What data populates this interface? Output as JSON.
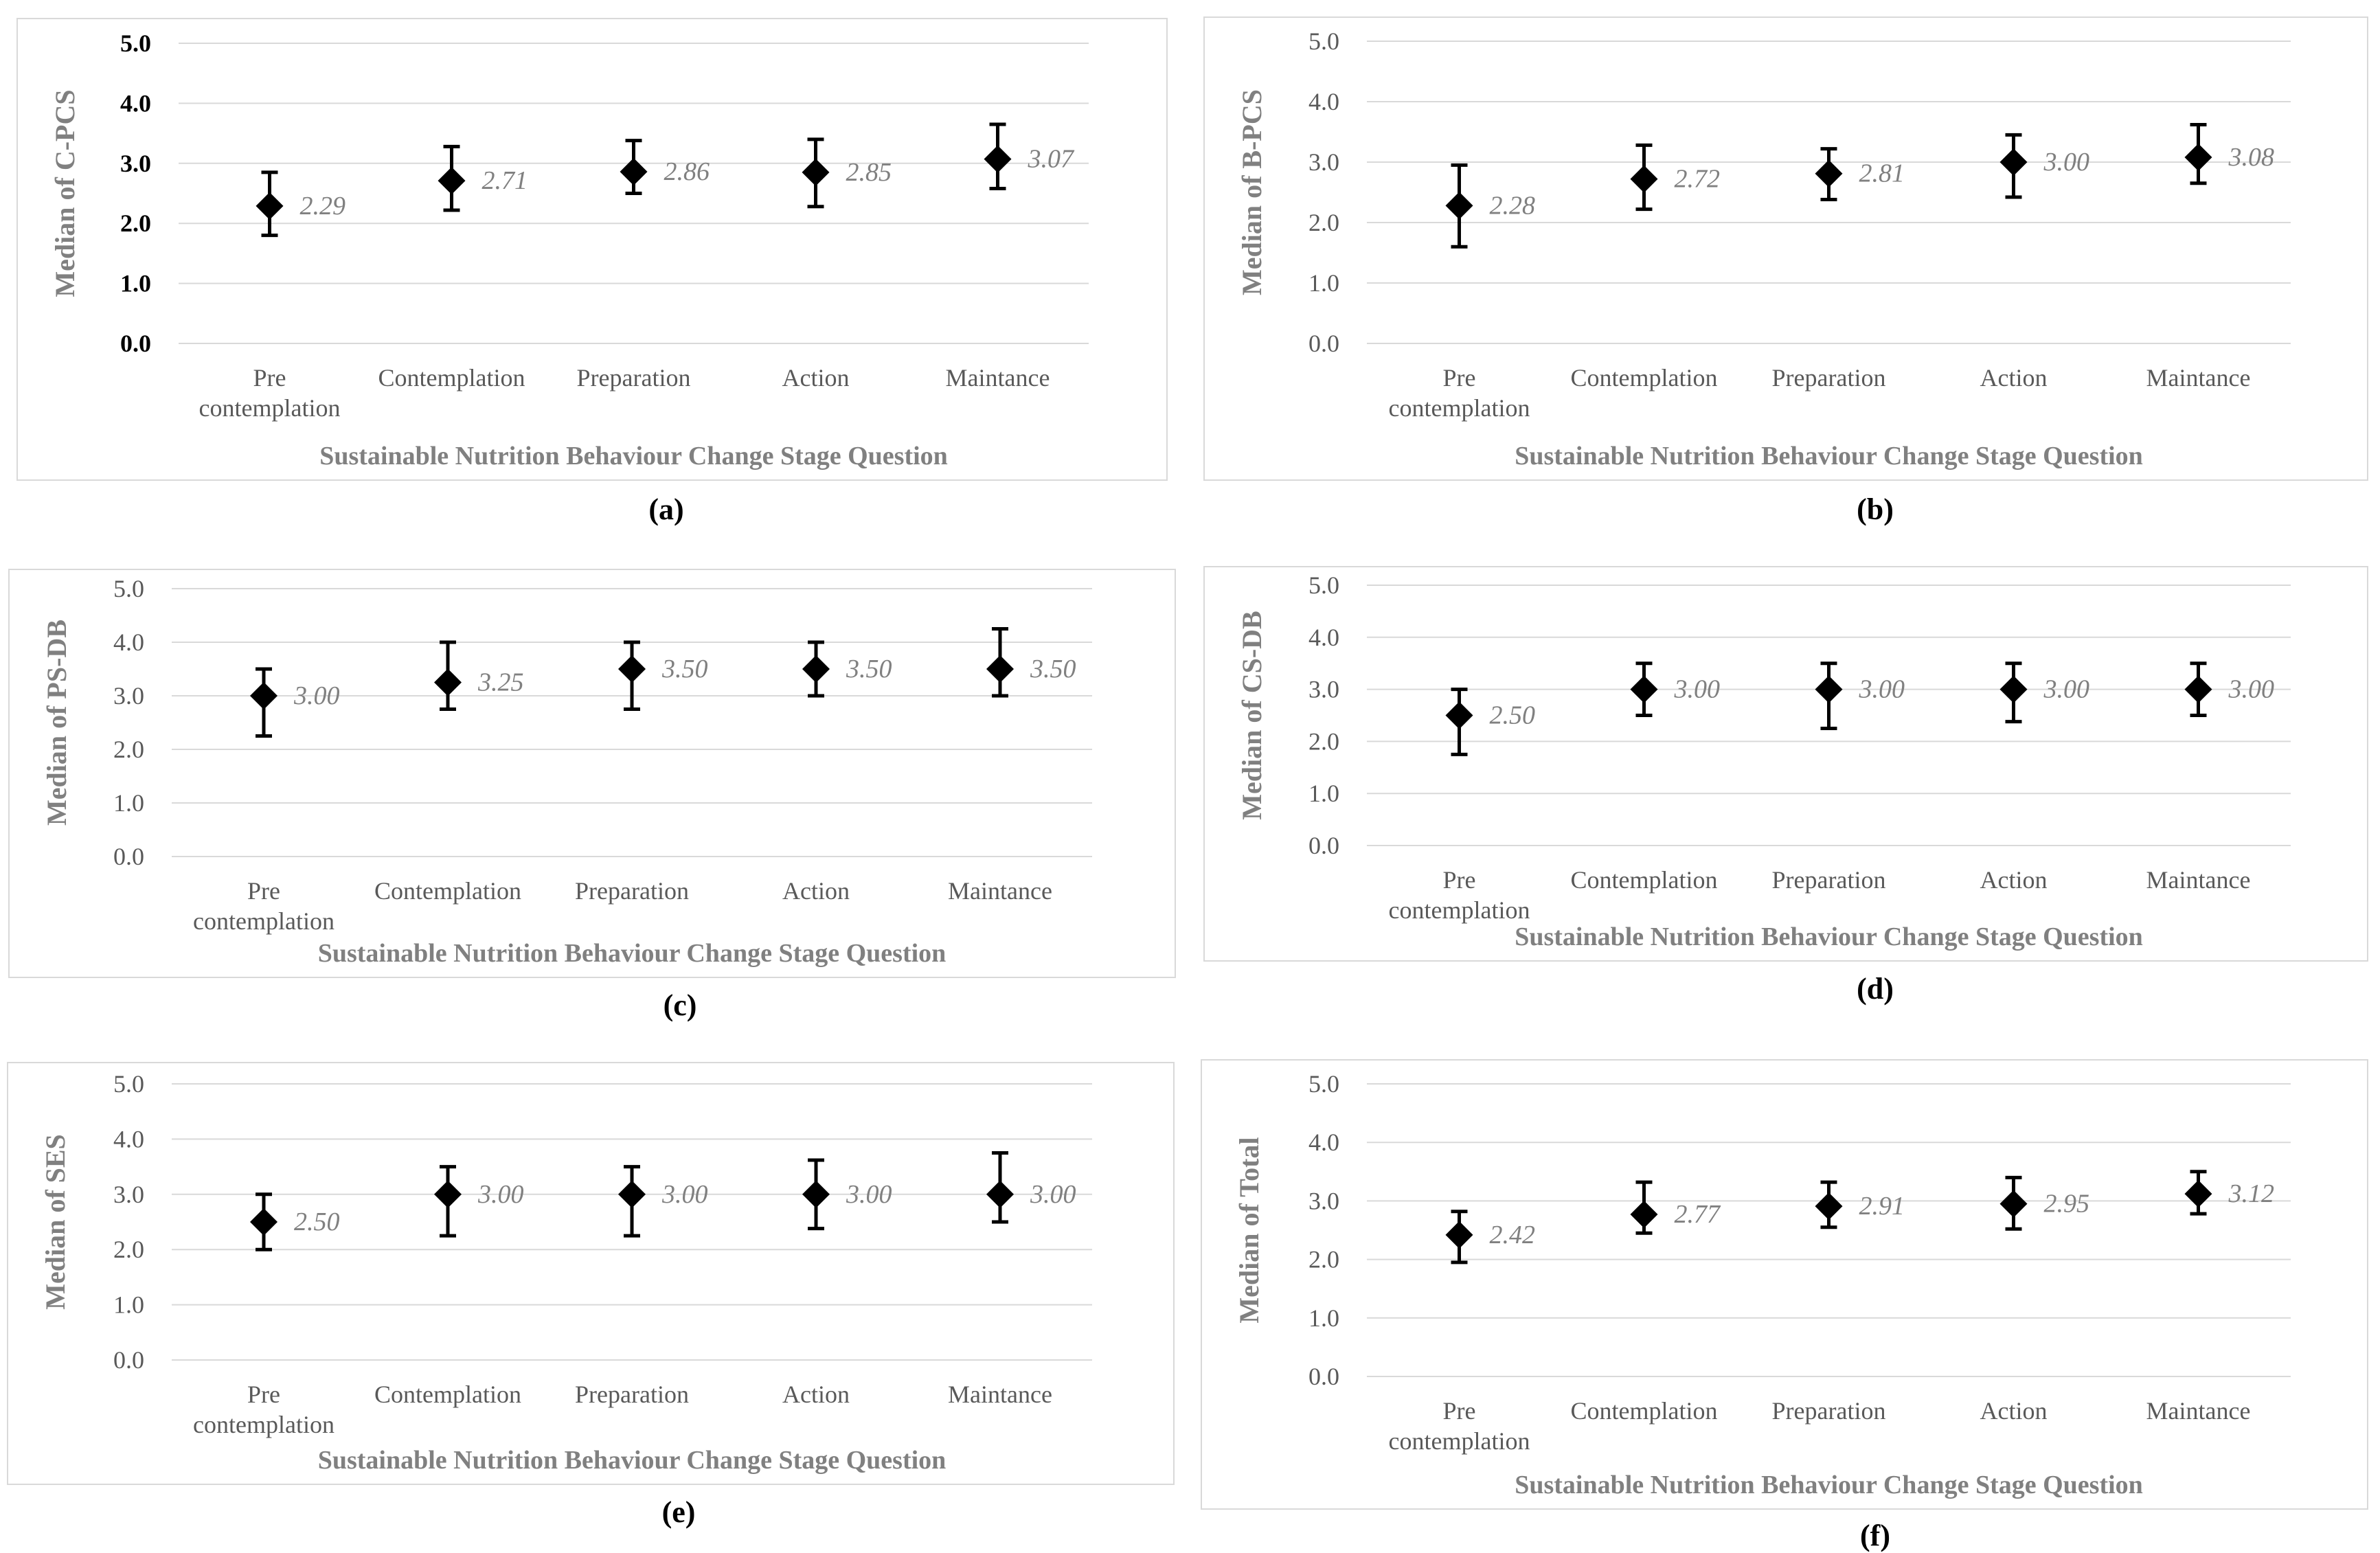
{
  "chart_data": [
    {
      "id": "a",
      "type": "scatter",
      "caption": "(a)",
      "ylabel": "Median of C-PCS",
      "xlabel": "Sustainable Nutrition Behaviour Change Stage Question",
      "categories": [
        [
          "Pre",
          "contemplation"
        ],
        [
          "Contemplation"
        ],
        [
          "Preparation"
        ],
        [
          "Action"
        ],
        [
          "Maintance"
        ]
      ],
      "values": [
        2.29,
        2.71,
        2.86,
        2.85,
        3.07
      ],
      "labels": [
        "2.29",
        "2.71",
        "2.86",
        "2.85",
        "3.07"
      ],
      "error_low": [
        1.8,
        2.22,
        2.5,
        2.28,
        2.58
      ],
      "error_high": [
        2.85,
        3.28,
        3.38,
        3.4,
        3.65
      ],
      "ylim": [
        0,
        5
      ],
      "yticks": [
        "0.0",
        "1.0",
        "2.0",
        "3.0",
        "4.0",
        "5.0"
      ],
      "ytick_bold": true,
      "grid": true
    },
    {
      "id": "b",
      "type": "scatter",
      "caption": "(b)",
      "ylabel": "Median of B-PCS",
      "xlabel": "Sustainable Nutrition Behaviour Change Stage Question",
      "categories": [
        [
          "Pre",
          "contemplation"
        ],
        [
          "Contemplation"
        ],
        [
          "Preparation"
        ],
        [
          "Action"
        ],
        [
          "Maintance"
        ]
      ],
      "values": [
        2.28,
        2.72,
        2.81,
        3.0,
        3.08
      ],
      "labels": [
        "2.28",
        "2.72",
        "2.81",
        "3.00",
        "3.08"
      ],
      "error_low": [
        1.6,
        2.22,
        2.38,
        2.42,
        2.65
      ],
      "error_high": [
        2.95,
        3.28,
        3.22,
        3.45,
        3.62
      ],
      "ylim": [
        0,
        5
      ],
      "yticks": [
        "0.0",
        "1.0",
        "2.0",
        "3.0",
        "4.0",
        "5.0"
      ],
      "ytick_bold": false,
      "grid": true
    },
    {
      "id": "c",
      "type": "scatter",
      "caption": "(c)",
      "ylabel": "Median of PS-DB",
      "xlabel": "Sustainable Nutrition Behaviour Change Stage Question",
      "categories": [
        [
          "Pre",
          "contemplation"
        ],
        [
          "Contemplation"
        ],
        [
          "Preparation"
        ],
        [
          "Action"
        ],
        [
          "Maintance"
        ]
      ],
      "values": [
        3.0,
        3.25,
        3.5,
        3.5,
        3.5
      ],
      "labels": [
        "3.00",
        "3.25",
        "3.50",
        "3.50",
        "3.50"
      ],
      "error_low": [
        2.25,
        2.75,
        2.75,
        3.0,
        3.0
      ],
      "error_high": [
        3.5,
        4.0,
        4.0,
        4.0,
        4.25
      ],
      "ylim": [
        0,
        5
      ],
      "yticks": [
        "0.0",
        "1.0",
        "2.0",
        "3.0",
        "4.0",
        "5.0"
      ],
      "ytick_bold": false,
      "grid": true
    },
    {
      "id": "d",
      "type": "scatter",
      "caption": "(d)",
      "ylabel": "Median of CS-DB",
      "xlabel": "Sustainable Nutrition Behaviour Change Stage Question",
      "categories": [
        [
          "Pre",
          "contemplation"
        ],
        [
          "Contemplation"
        ],
        [
          "Preparation"
        ],
        [
          "Action"
        ],
        [
          "Maintance"
        ]
      ],
      "values": [
        2.5,
        3.0,
        3.0,
        3.0,
        3.0
      ],
      "labels": [
        "2.50",
        "3.00",
        "3.00",
        "3.00",
        "3.00"
      ],
      "error_low": [
        1.75,
        2.5,
        2.25,
        2.38,
        2.5
      ],
      "error_high": [
        3.0,
        3.5,
        3.5,
        3.5,
        3.5
      ],
      "ylim": [
        0,
        5
      ],
      "yticks": [
        "0.0",
        "1.0",
        "2.0",
        "3.0",
        "4.0",
        "5.0"
      ],
      "ytick_bold": false,
      "grid": true
    },
    {
      "id": "e",
      "type": "scatter",
      "caption": "(e)",
      "ylabel": "Median of SES",
      "xlabel": "Sustainable Nutrition Behaviour Change Stage Question",
      "categories": [
        [
          "Pre",
          "contemplation"
        ],
        [
          "Contemplation"
        ],
        [
          "Preparation"
        ],
        [
          "Action"
        ],
        [
          "Maintance"
        ]
      ],
      "values": [
        2.5,
        3.0,
        3.0,
        3.0,
        3.0
      ],
      "labels": [
        "2.50",
        "3.00",
        "3.00",
        "3.00",
        "3.00"
      ],
      "error_low": [
        2.0,
        2.25,
        2.25,
        2.38,
        2.5
      ],
      "error_high": [
        3.0,
        3.5,
        3.5,
        3.62,
        3.75
      ],
      "ylim": [
        0,
        5
      ],
      "yticks": [
        "0.0",
        "1.0",
        "2.0",
        "3.0",
        "4.0",
        "5.0"
      ],
      "ytick_bold": false,
      "grid": true
    },
    {
      "id": "f",
      "type": "scatter",
      "caption": "(f)",
      "ylabel": "Median of Total",
      "xlabel": "Sustainable Nutrition Behaviour Change Stage Question",
      "categories": [
        [
          "Pre",
          "contemplation"
        ],
        [
          "Contemplation"
        ],
        [
          "Preparation"
        ],
        [
          "Action"
        ],
        [
          "Maintance"
        ]
      ],
      "values": [
        2.42,
        2.77,
        2.91,
        2.95,
        3.12
      ],
      "labels": [
        "2.42",
        "2.77",
        "2.91",
        "2.95",
        "3.12"
      ],
      "error_low": [
        1.95,
        2.45,
        2.55,
        2.52,
        2.78
      ],
      "error_high": [
        2.82,
        3.32,
        3.32,
        3.4,
        3.5
      ],
      "ylim": [
        0,
        5
      ],
      "yticks": [
        "0.0",
        "1.0",
        "2.0",
        "3.0",
        "4.0",
        "5.0"
      ],
      "ytick_bold": false,
      "grid": true
    }
  ],
  "colors": {
    "marker": "#000000",
    "grid": "#d9d9d9",
    "axis_text": "#808080",
    "tick_text": "#595959",
    "frame": "#d9d9d9"
  }
}
